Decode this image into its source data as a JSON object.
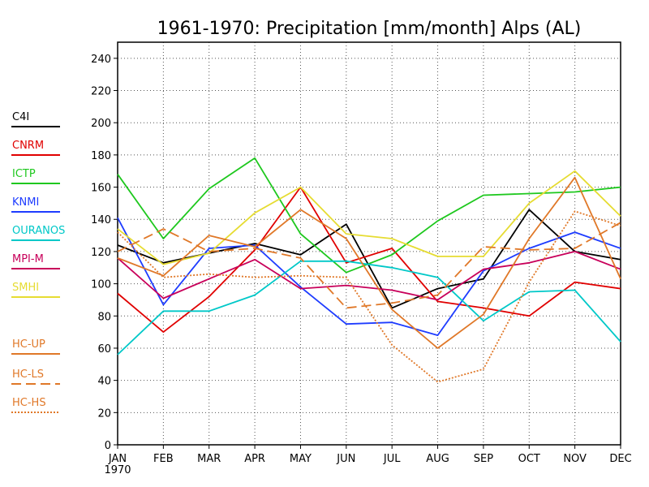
{
  "chart_data": {
    "type": "line",
    "title": "1961-1970: Precipitation [mm/month] Alps (AL)",
    "categories": [
      "JAN",
      "FEB",
      "MAR",
      "APR",
      "MAY",
      "JUN",
      "JUL",
      "AUG",
      "SEP",
      "OCT",
      "NOV",
      "DEC"
    ],
    "x_sublabel": "1970",
    "ylim": [
      0,
      250
    ],
    "yticks": [
      0,
      20,
      40,
      60,
      80,
      100,
      120,
      140,
      160,
      180,
      200,
      220,
      240
    ],
    "grid": true,
    "legend_position": "left",
    "series": [
      {
        "name": "C4I",
        "color": "#000000",
        "dash": "solid",
        "values": [
          124,
          113,
          119,
          125,
          118,
          137,
          85,
          97,
          103,
          146,
          120,
          115
        ]
      },
      {
        "name": "CNRM",
        "color": "#e00000",
        "dash": "solid",
        "values": [
          94,
          70,
          92,
          121,
          160,
          113,
          122,
          89,
          85,
          80,
          101,
          97
        ]
      },
      {
        "name": "ICTP",
        "color": "#1ec81e",
        "dash": "solid",
        "values": [
          168,
          128,
          159,
          178,
          131,
          107,
          118,
          139,
          155,
          156,
          157,
          160
        ]
      },
      {
        "name": "KNMI",
        "color": "#1e3cff",
        "dash": "solid",
        "values": [
          141,
          87,
          122,
          124,
          98,
          75,
          76,
          68,
          108,
          122,
          132,
          122
        ]
      },
      {
        "name": "OURANOS",
        "color": "#00c8c8",
        "dash": "solid",
        "values": [
          56,
          83,
          83,
          93,
          114,
          114,
          110,
          104,
          77,
          95,
          96,
          64
        ]
      },
      {
        "name": "MPI-M",
        "color": "#c8005a",
        "dash": "solid",
        "values": [
          116,
          91,
          103,
          115,
          97,
          99,
          96,
          90,
          109,
          113,
          120,
          109
        ]
      },
      {
        "name": "SMHI",
        "color": "#e6dc32",
        "dash": "solid",
        "values": [
          134,
          112,
          119,
          144,
          160,
          131,
          128,
          117,
          117,
          150,
          170,
          142
        ]
      },
      {
        "name": "HC-UP",
        "color": "#e07828",
        "dash": "solid",
        "values": [
          116,
          105,
          130,
          123,
          146,
          128,
          84,
          60,
          81,
          128,
          166,
          103
        ]
      },
      {
        "name": "HC-LS",
        "color": "#e07828",
        "dash": "dash",
        "values": [
          120,
          134,
          120,
          122,
          116,
          85,
          88,
          93,
          123,
          121,
          122,
          138
        ]
      },
      {
        "name": "HC-HS",
        "color": "#e07828",
        "dash": "dot",
        "values": [
          132,
          104,
          106,
          104,
          105,
          104,
          62,
          39,
          47,
          101,
          145,
          136
        ]
      }
    ]
  }
}
